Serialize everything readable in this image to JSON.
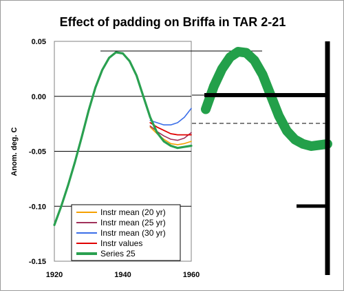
{
  "chart_data": {
    "type": "line",
    "title": "Effect of padding on Briffa in TAR 2-21",
    "xlabel": "",
    "ylabel": "Anom. deg. C",
    "xlim": [
      1920,
      1960
    ],
    "ylim": [
      -0.15,
      0.05
    ],
    "x_ticks": [
      1920,
      1940,
      1960
    ],
    "y_ticks": [
      0.05,
      0.0,
      -0.05,
      -0.1,
      -0.15
    ],
    "y_tick_labels": [
      "0.05",
      "0.00",
      "-0.05",
      "-0.10",
      "-0.15"
    ],
    "grid": "horizontal",
    "legend_position": "bottom-left",
    "colors": {
      "instr_mean_20": "#f5a000",
      "instr_mean_25": "#a0305a",
      "instr_mean_30": "#3a6ee8",
      "instr_values": "#e00000",
      "series_25": "#2aa050",
      "zoom_overlay": "#23a04a",
      "annotation_lines": "#000000"
    },
    "series": [
      {
        "name": "Instr mean (20 yr)",
        "x": [
          1948,
          1950,
          1952,
          1954,
          1956,
          1958,
          1960
        ],
        "values": [
          -0.028,
          -0.034,
          -0.039,
          -0.043,
          -0.044,
          -0.043,
          -0.041
        ]
      },
      {
        "name": "Instr mean (25 yr)",
        "x": [
          1948,
          1950,
          1952,
          1954,
          1956,
          1958,
          1960
        ],
        "values": [
          -0.027,
          -0.032,
          -0.036,
          -0.039,
          -0.04,
          -0.038,
          -0.033
        ]
      },
      {
        "name": "Instr mean (30 yr)",
        "x": [
          1948,
          1950,
          1952,
          1954,
          1956,
          1958,
          1960
        ],
        "values": [
          -0.022,
          -0.024,
          -0.026,
          -0.026,
          -0.024,
          -0.019,
          -0.011
        ]
      },
      {
        "name": "Instr values",
        "x": [
          1948,
          1950,
          1952,
          1954,
          1956,
          1958,
          1960
        ],
        "values": [
          -0.024,
          -0.028,
          -0.031,
          -0.034,
          -0.035,
          -0.035,
          -0.035
        ]
      },
      {
        "name": "Series 25",
        "x": [
          1920,
          1922,
          1924,
          1926,
          1928,
          1930,
          1932,
          1934,
          1936,
          1938,
          1940,
          1942,
          1944,
          1946,
          1948,
          1950,
          1952,
          1954,
          1956,
          1958,
          1960
        ],
        "values": [
          -0.117,
          -0.1,
          -0.081,
          -0.06,
          -0.037,
          -0.013,
          0.008,
          0.024,
          0.035,
          0.04,
          0.039,
          0.032,
          0.019,
          0.0,
          -0.019,
          -0.033,
          -0.041,
          -0.045,
          -0.047,
          -0.046,
          -0.045
        ]
      }
    ]
  }
}
